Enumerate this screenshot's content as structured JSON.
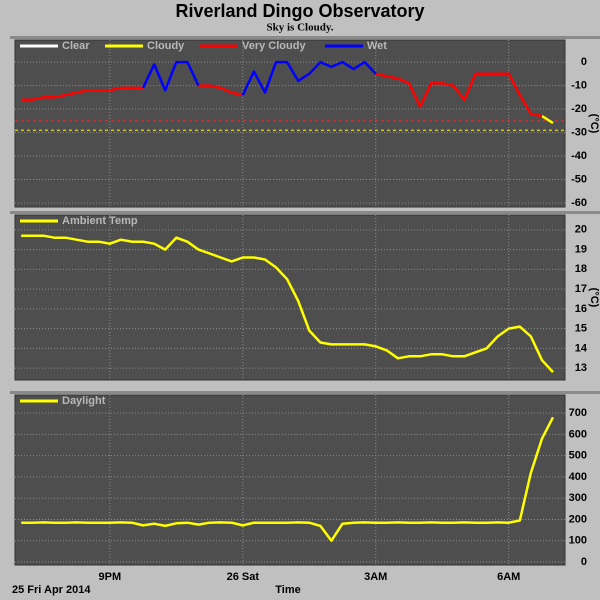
{
  "title": "Riverland Dingo Observatory",
  "subtitle": "Sky is Cloudy.",
  "chart_data": [
    {
      "type": "line",
      "y_label": "(°C)",
      "ylim": [
        -61.7,
        9.4
      ],
      "yticks": [
        0,
        -10,
        -20,
        -30,
        -40,
        -50,
        -60
      ],
      "grid": true,
      "legend": "top-left",
      "x": [
        19,
        19.25,
        19.5,
        19.75,
        20,
        20.25,
        20.5,
        20.75,
        21,
        21.25,
        21.5,
        21.75,
        22,
        22.25,
        22.5,
        22.75,
        23,
        23.25,
        23.5,
        23.75,
        24,
        24.25,
        24.5,
        24.75,
        25,
        25.25,
        25.5,
        25.75,
        26,
        26.25,
        26.5,
        26.75,
        27,
        27.25,
        27.5,
        27.75,
        28,
        28.25,
        28.5,
        28.75,
        29,
        29.25,
        29.5,
        29.75,
        30,
        30.25,
        30.5,
        30.75,
        31
      ],
      "reference_lines": [
        {
          "value": -25,
          "color": "#ff2020"
        },
        {
          "value": -29,
          "color": "#ffff00"
        }
      ],
      "series": [
        {
          "name": "Clear",
          "color": "#ffffff",
          "values": [
            null,
            null,
            null,
            null,
            null,
            null,
            null,
            null,
            null,
            null,
            null,
            null,
            null,
            null,
            null,
            null,
            null,
            null,
            null,
            null,
            null,
            null,
            null,
            null,
            null,
            null,
            null,
            null,
            null,
            null,
            null,
            null,
            null,
            null,
            null,
            null,
            null,
            null,
            null,
            null,
            null,
            null,
            null,
            null,
            null,
            null,
            null,
            null,
            null
          ]
        },
        {
          "name": "Cloudy",
          "color": "#ffff00",
          "values": [
            null,
            null,
            null,
            null,
            null,
            null,
            null,
            null,
            null,
            null,
            null,
            null,
            null,
            null,
            null,
            null,
            null,
            null,
            null,
            null,
            null,
            null,
            null,
            null,
            null,
            null,
            null,
            null,
            null,
            null,
            null,
            null,
            null,
            null,
            null,
            null,
            null,
            null,
            null,
            null,
            null,
            null,
            null,
            null,
            null,
            null,
            null,
            -23,
            -26
          ]
        },
        {
          "name": "Very Cloudy",
          "color": "#ff0000",
          "values": [
            -16,
            -16,
            -15,
            -15,
            -14,
            -13,
            -12,
            -12,
            -12,
            -11,
            -11,
            -11,
            null,
            null,
            null,
            null,
            -10,
            -10,
            -11,
            -13,
            -14,
            null,
            null,
            null,
            null,
            -8,
            -5,
            null,
            null,
            null,
            null,
            null,
            -5,
            -6,
            -7,
            -9,
            -19,
            -9,
            -9,
            -10,
            -16,
            -5,
            -5,
            -5,
            -5,
            -14,
            -22,
            -23,
            null
          ]
        },
        {
          "name": "Wet",
          "color": "#0000ff",
          "values": [
            null,
            null,
            null,
            null,
            null,
            null,
            null,
            null,
            null,
            null,
            null,
            -11,
            -1,
            -12,
            0,
            0,
            -10,
            null,
            null,
            null,
            -14,
            -4,
            -13,
            0,
            0,
            -8,
            -5,
            0,
            -2,
            0,
            -3,
            0,
            -5,
            null,
            null,
            null,
            null,
            null,
            null,
            null,
            null,
            null,
            null,
            null,
            null,
            null,
            null,
            null,
            null
          ]
        }
      ]
    },
    {
      "type": "line",
      "y_label": "(°C)",
      "ylim": [
        12.4,
        20.75
      ],
      "yticks": [
        13,
        14,
        15,
        16,
        17,
        18,
        19,
        20
      ],
      "grid": true,
      "legend": "top-left",
      "x": [
        19,
        19.25,
        19.5,
        19.75,
        20,
        20.25,
        20.5,
        20.75,
        21,
        21.25,
        21.5,
        21.75,
        22,
        22.25,
        22.5,
        22.75,
        23,
        23.25,
        23.5,
        23.75,
        24,
        24.25,
        24.5,
        24.75,
        25,
        25.25,
        25.5,
        25.75,
        26,
        26.25,
        26.5,
        26.75,
        27,
        27.25,
        27.5,
        27.75,
        28,
        28.25,
        28.5,
        28.75,
        29,
        29.25,
        29.5,
        29.75,
        30,
        30.25,
        30.5,
        30.75,
        31
      ],
      "series": [
        {
          "name": "Ambient Temp",
          "color": "#ffff00",
          "values": [
            19.7,
            19.7,
            19.7,
            19.6,
            19.6,
            19.5,
            19.4,
            19.4,
            19.3,
            19.5,
            19.4,
            19.4,
            19.3,
            19.0,
            19.6,
            19.4,
            19.0,
            18.8,
            18.6,
            18.4,
            18.6,
            18.6,
            18.5,
            18.1,
            17.5,
            16.4,
            14.9,
            14.3,
            14.2,
            14.2,
            14.2,
            14.2,
            14.1,
            13.9,
            13.5,
            13.6,
            13.6,
            13.7,
            13.7,
            13.6,
            13.6,
            13.8,
            14.0,
            14.6,
            15.0,
            15.1,
            14.6,
            13.4,
            12.8
          ]
        }
      ]
    },
    {
      "type": "line",
      "x_label": "Time",
      "date_label": "25 Fri Apr 2014",
      "xlim": [
        18.86,
        31.27
      ],
      "xticks": [
        {
          "value": 21,
          "label": "9PM"
        },
        {
          "value": 24,
          "label": "26 Sat"
        },
        {
          "value": 27,
          "label": "3AM"
        },
        {
          "value": 30,
          "label": "6AM"
        }
      ],
      "ylim": [
        -14,
        785
      ],
      "yticks": [
        0,
        100,
        200,
        300,
        400,
        500,
        600,
        700
      ],
      "grid": true,
      "legend": "top-left",
      "x": [
        19,
        19.25,
        19.5,
        19.75,
        20,
        20.25,
        20.5,
        20.75,
        21,
        21.25,
        21.5,
        21.75,
        22,
        22.25,
        22.5,
        22.75,
        23,
        23.25,
        23.5,
        23.75,
        24,
        24.25,
        24.5,
        24.75,
        25,
        25.25,
        25.5,
        25.75,
        26,
        26.25,
        26.5,
        26.75,
        27,
        27.25,
        27.5,
        27.75,
        28,
        28.25,
        28.5,
        28.75,
        29,
        29.25,
        29.5,
        29.75,
        30,
        30.25,
        30.5,
        30.75,
        31
      ],
      "series": [
        {
          "name": "Daylight",
          "color": "#ffff00",
          "values": [
            185,
            185,
            186,
            185,
            185,
            186,
            185,
            185,
            185,
            186,
            185,
            172,
            180,
            170,
            182,
            185,
            176,
            185,
            186,
            185,
            172,
            185,
            185,
            185,
            185,
            186,
            185,
            170,
            100,
            180,
            185,
            186,
            185,
            185,
            186,
            185,
            185,
            186,
            185,
            185,
            186,
            185,
            185,
            186,
            185,
            195,
            420,
            580,
            680
          ]
        }
      ]
    }
  ]
}
